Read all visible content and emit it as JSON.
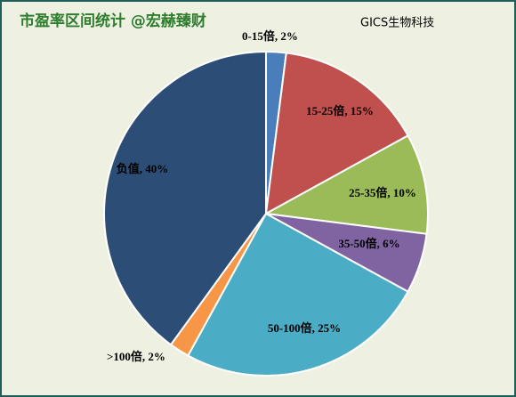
{
  "chart_data": {
    "type": "pie",
    "title": "市盈率区间统计 @宏赫臻财",
    "subtitle": "GICS生物科技",
    "categories": [
      "0-15倍",
      "15-25倍",
      "25-35倍",
      "35-50倍",
      "50-100倍",
      ">100倍",
      "负值"
    ],
    "values": [
      2,
      15,
      10,
      6,
      25,
      2,
      40
    ],
    "value_labels": [
      "0-15倍, 2%",
      "15-25倍, 15%",
      "25-35倍, 10%",
      "35-50倍, 6%",
      "50-100倍, 25%",
      ">100倍, 2%",
      "负值, 40%"
    ],
    "colors": [
      "#4a7ebb",
      "#c0504d",
      "#9bbb59",
      "#8064a2",
      "#4bacc6",
      "#f79646",
      "#2c4d75"
    ]
  }
}
